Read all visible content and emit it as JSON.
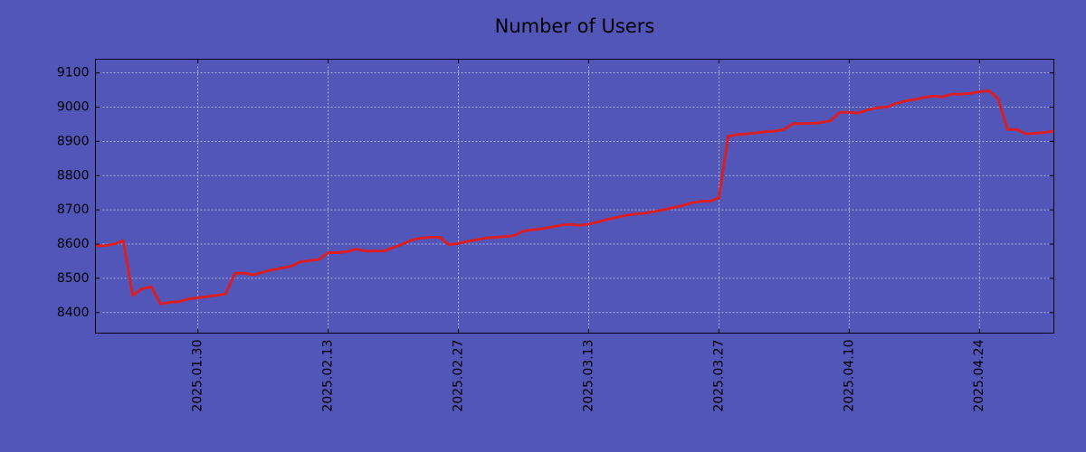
{
  "chart_data": {
    "type": "line",
    "title": "Number of Users",
    "x": [
      "2025.01.19",
      "2025.01.20",
      "2025.01.21",
      "2025.01.22",
      "2025.01.23",
      "2025.01.24",
      "2025.01.25",
      "2025.01.26",
      "2025.01.27",
      "2025.01.28",
      "2025.01.29",
      "2025.01.30",
      "2025.01.31",
      "2025.02.01",
      "2025.02.02",
      "2025.02.03",
      "2025.02.04",
      "2025.02.05",
      "2025.02.06",
      "2025.02.07",
      "2025.02.08",
      "2025.02.09",
      "2025.02.10",
      "2025.02.11",
      "2025.02.12",
      "2025.02.13",
      "2025.02.14",
      "2025.02.15",
      "2025.02.16",
      "2025.02.17",
      "2025.02.18",
      "2025.02.19",
      "2025.02.20",
      "2025.02.21",
      "2025.02.22",
      "2025.02.23",
      "2025.02.24",
      "2025.02.25",
      "2025.02.26",
      "2025.02.27",
      "2025.02.28",
      "2025.03.01",
      "2025.03.02",
      "2025.03.03",
      "2025.03.04",
      "2025.03.05",
      "2025.03.06",
      "2025.03.07",
      "2025.03.08",
      "2025.03.09",
      "2025.03.10",
      "2025.03.11",
      "2025.03.12",
      "2025.03.13",
      "2025.03.14",
      "2025.03.15",
      "2025.03.16",
      "2025.03.17",
      "2025.03.18",
      "2025.03.19",
      "2025.03.20",
      "2025.03.21",
      "2025.03.22",
      "2025.03.23",
      "2025.03.24",
      "2025.03.25",
      "2025.03.26",
      "2025.03.27",
      "2025.03.28",
      "2025.03.29",
      "2025.03.30",
      "2025.03.31",
      "2025.04.01",
      "2025.04.02",
      "2025.04.03",
      "2025.04.04",
      "2025.04.05",
      "2025.04.06",
      "2025.04.07",
      "2025.04.08",
      "2025.04.09",
      "2025.04.10",
      "2025.04.11",
      "2025.04.12",
      "2025.04.13",
      "2025.04.14",
      "2025.04.15",
      "2025.04.16",
      "2025.04.17",
      "2025.04.18",
      "2025.04.19",
      "2025.04.20",
      "2025.04.21",
      "2025.04.22",
      "2025.04.23",
      "2025.04.24",
      "2025.04.25",
      "2025.04.26",
      "2025.04.27",
      "2025.04.28",
      "2025.04.29",
      "2025.04.30",
      "2025.05.01",
      "2025.05.02"
    ],
    "series": [
      {
        "name": "Number of Users",
        "color": "#d91f26",
        "values": [
          8595,
          8595,
          8600,
          8610,
          8450,
          8470,
          8475,
          8425,
          8430,
          8432,
          8440,
          8443,
          8447,
          8450,
          8455,
          8515,
          8515,
          8510,
          8518,
          8525,
          8530,
          8535,
          8548,
          8552,
          8555,
          8575,
          8575,
          8578,
          8585,
          8580,
          8580,
          8580,
          8590,
          8600,
          8612,
          8618,
          8620,
          8620,
          8598,
          8602,
          8608,
          8613,
          8618,
          8620,
          8622,
          8625,
          8638,
          8642,
          8645,
          8650,
          8655,
          8658,
          8655,
          8658,
          8665,
          8672,
          8678,
          8684,
          8688,
          8690,
          8695,
          8700,
          8706,
          8712,
          8720,
          8725,
          8725,
          8735,
          8915,
          8920,
          8922,
          8925,
          8928,
          8930,
          8935,
          8952,
          8952,
          8953,
          8955,
          8960,
          8985,
          8985,
          8983,
          8992,
          8998,
          9000,
          9010,
          9018,
          9022,
          9028,
          9032,
          9030,
          9038,
          9038,
          9040,
          9045,
          9048,
          9025,
          8935,
          8935,
          8922,
          8924,
          8926,
          8930
        ]
      }
    ],
    "xlim": [
      "2025.01.19",
      "2025.05.02"
    ],
    "xticks": [
      "2025.01.30",
      "2025.02.13",
      "2025.02.27",
      "2025.03.13",
      "2025.03.27",
      "2025.04.10",
      "2025.04.24"
    ],
    "ylim": [
      8340,
      9140
    ],
    "yticks": [
      8400,
      8500,
      8600,
      8700,
      8800,
      8900,
      9000,
      9100
    ],
    "grid": true
  }
}
